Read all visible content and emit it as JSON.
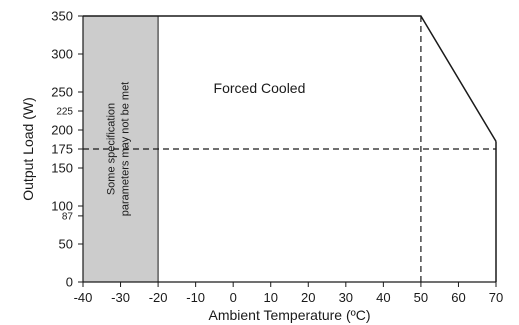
{
  "chart_data": {
    "type": "line",
    "title": "",
    "xlabel": "Ambient Temperature (ºC)",
    "ylabel": "Output Load (W)",
    "xlim": [
      -40,
      70
    ],
    "ylim": [
      0,
      350
    ],
    "grid": false,
    "x_ticks": [
      -40,
      -30,
      -20,
      -10,
      0,
      10,
      20,
      30,
      40,
      50,
      60,
      70
    ],
    "y_ticks": [
      0,
      50,
      87,
      100,
      150,
      175,
      200,
      225,
      250,
      300,
      350
    ],
    "y_ticks_small": [
      87,
      225
    ],
    "x_tick_labels": [
      "-40",
      "-30",
      "-20",
      "-10",
      "0",
      "10",
      "20",
      "30",
      "40",
      "50",
      "60",
      "70"
    ],
    "y_tick_labels": [
      "0",
      "50",
      "87",
      "100",
      "150",
      "175",
      "200",
      "225",
      "250",
      "300",
      "350"
    ],
    "series": [
      {
        "x": [
          -40,
          50,
          70
        ],
        "y": [
          350,
          350,
          185
        ]
      }
    ],
    "reference_lines": [
      {
        "orientation": "horizontal",
        "value": 175,
        "style": "dashed"
      },
      {
        "orientation": "vertical",
        "value": 50,
        "style": "dashed"
      }
    ],
    "shaded_region": {
      "x_range": [
        -40,
        -20
      ],
      "color": "#cccccc",
      "label_lines": [
        "Some specification",
        "parameters may not be met"
      ]
    },
    "annotations": [
      {
        "text": "Forced Cooled",
        "x": 7,
        "y": 255
      }
    ]
  }
}
